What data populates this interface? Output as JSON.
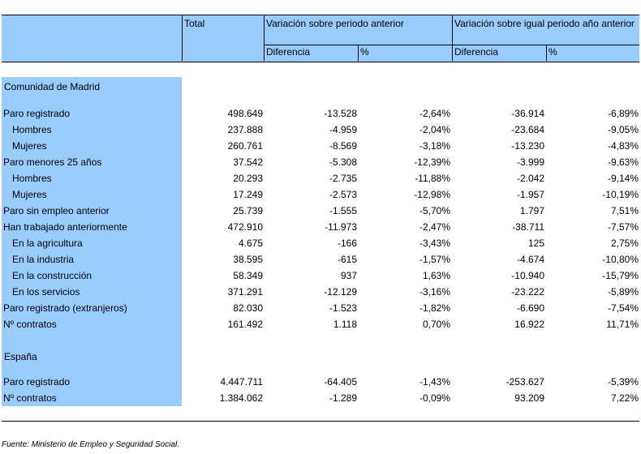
{
  "header": {
    "total": "Total",
    "group1": "Variación sobre periodo anterior",
    "group2": "Variación sobre igual periodo año anterior",
    "sub_dif1": "Diferencia",
    "sub_pct1": "%",
    "sub_dif2": "Diferencia",
    "sub_pct2": "%"
  },
  "sections": [
    {
      "title": "Comunidad de Madrid",
      "rows": [
        {
          "label": "Paro registrado",
          "indent": false,
          "total": "498.649",
          "dif1": "-13.528",
          "pct1": "-2,64%",
          "dif2": "-36.914",
          "pct2": "-6,89%"
        },
        {
          "label": "Hombres",
          "indent": true,
          "total": "237.888",
          "dif1": "-4.959",
          "pct1": "-2,04%",
          "dif2": "-23.684",
          "pct2": "-9,05%"
        },
        {
          "label": "Mujeres",
          "indent": true,
          "total": "260.761",
          "dif1": "-8.569",
          "pct1": "-3,18%",
          "dif2": "-13.230",
          "pct2": "-4,83%"
        },
        {
          "label": "Paro menores 25 años",
          "indent": false,
          "total": "37.542",
          "dif1": "-5.308",
          "pct1": "-12,39%",
          "dif2": "-3.999",
          "pct2": "-9,63%"
        },
        {
          "label": "Hombres",
          "indent": true,
          "total": "20.293",
          "dif1": "-2.735",
          "pct1": "-11,88%",
          "dif2": "-2.042",
          "pct2": "-9,14%"
        },
        {
          "label": "Mujeres",
          "indent": true,
          "total": "17.249",
          "dif1": "-2.573",
          "pct1": "-12,98%",
          "dif2": "-1.957",
          "pct2": "-10,19%"
        },
        {
          "label": "Paro sin empleo anterior",
          "indent": false,
          "total": "25.739",
          "dif1": "-1.555",
          "pct1": "-5,70%",
          "dif2": "1.797",
          "pct2": "7,51%"
        },
        {
          "label": "Han trabajado anteriormente",
          "indent": false,
          "total": "472.910",
          "dif1": "-11.973",
          "pct1": "-2,47%",
          "dif2": "-38.711",
          "pct2": "-7,57%"
        },
        {
          "label": "En la agricultura",
          "indent": true,
          "total": "4.675",
          "dif1": "-166",
          "pct1": "-3,43%",
          "dif2": "125",
          "pct2": "2,75%"
        },
        {
          "label": "En la industria",
          "indent": true,
          "total": "38.595",
          "dif1": "-615",
          "pct1": "-1,57%",
          "dif2": "-4.674",
          "pct2": "-10,80%"
        },
        {
          "label": "En la construcción",
          "indent": true,
          "total": "58.349",
          "dif1": "937",
          "pct1": "1,63%",
          "dif2": "-10.940",
          "pct2": "-15,79%"
        },
        {
          "label": "En los servicios",
          "indent": true,
          "total": "371.291",
          "dif1": "-12.129",
          "pct1": "-3,16%",
          "dif2": "-23.222",
          "pct2": "-5,89%"
        },
        {
          "label": "Paro registrado (extranjeros)",
          "indent": false,
          "total": "82.030",
          "dif1": "-1.523",
          "pct1": "-1,82%",
          "dif2": "-6.690",
          "pct2": "-7,54%"
        },
        {
          "label": "Nº contratos",
          "indent": false,
          "total": "161.492",
          "dif1": "1.118",
          "pct1": "0,70%",
          "dif2": "16.922",
          "pct2": "11,71%"
        }
      ]
    },
    {
      "title": "España",
      "rows": [
        {
          "label": "Paro registrado",
          "indent": false,
          "total": "4.447.711",
          "dif1": "-64.405",
          "pct1": "-1,43%",
          "dif2": "-253.627",
          "pct2": "-5,39%"
        },
        {
          "label": "Nº contratos",
          "indent": false,
          "total": "1.384.062",
          "dif1": "-1.289",
          "pct1": "-0,09%",
          "dif2": "93.209",
          "pct2": "7,22%"
        }
      ]
    }
  ],
  "footer": {
    "source": "Fuente: Ministerio de Empleo y Seguridad Social."
  },
  "colors": {
    "header_bg": "#99ccff",
    "label_bg": "#99ccff"
  }
}
